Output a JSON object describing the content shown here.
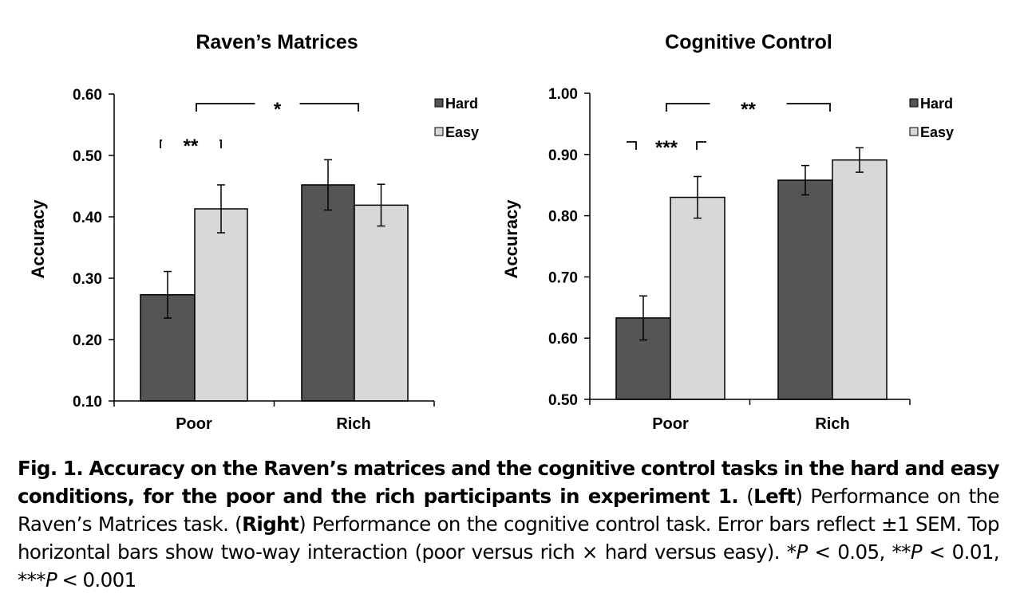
{
  "colors": {
    "hard": "#555555",
    "easy": "#d8d8d8",
    "outline": "#000000"
  },
  "chart_data": [
    {
      "type": "bar",
      "title": "Raven’s Matrices",
      "ylabel": "Accuracy",
      "xlabel": "",
      "categories": [
        "Poor",
        "Rich"
      ],
      "ylim": [
        0.1,
        0.6
      ],
      "yticks": [
        "0.10",
        "0.20",
        "0.30",
        "0.40",
        "0.50",
        "0.60"
      ],
      "series": [
        {
          "name": "Hard",
          "values": [
            0.273,
            0.452
          ],
          "errors": [
            0.038,
            0.041
          ]
        },
        {
          "name": "Easy",
          "values": [
            0.413,
            0.419
          ],
          "errors": [
            0.039,
            0.034
          ]
        }
      ],
      "legend_position": "top-right",
      "annotations": [
        {
          "text": "**",
          "type": "within-group"
        },
        {
          "text": "*",
          "type": "interaction"
        }
      ]
    },
    {
      "type": "bar",
      "title": "Cognitive Control",
      "ylabel": "Accuracy",
      "xlabel": "",
      "categories": [
        "Poor",
        "Rich"
      ],
      "ylim": [
        0.5,
        1.0
      ],
      "yticks": [
        "0.50",
        "0.60",
        "0.70",
        "0.80",
        "0.90",
        "1.00"
      ],
      "series": [
        {
          "name": "Hard",
          "values": [
            0.633,
            0.858
          ],
          "errors": [
            0.036,
            0.024
          ]
        },
        {
          "name": "Easy",
          "values": [
            0.83,
            0.891
          ],
          "errors": [
            0.034,
            0.02
          ]
        }
      ],
      "legend_position": "top-right",
      "annotations": [
        {
          "text": "***",
          "type": "within-group"
        },
        {
          "text": "**",
          "type": "interaction"
        }
      ]
    }
  ],
  "caption": {
    "fig_label": "Fig. 1.",
    "bold_text": " Accuracy on the Raven’s matrices and the cognitive control tasks in the hard and easy conditions, for the poor and the rich participants in experiment 1.",
    "left_open": " (",
    "left_label": "Left",
    "left_text": ") Performance on the Raven’s Matrices task. (",
    "right_label": "Right",
    "right_text": ") Performance on the cognitive control task. Error bars reflect ±1 SEM. Top horizontal bars show two-way interaction (poor versus rich × hard versus easy). *",
    "p1": "P",
    "t1": " < 0.05, **",
    "p2": "P",
    "t2": " < 0.01, ***",
    "p3": "P",
    "t3": " < 0.001"
  }
}
